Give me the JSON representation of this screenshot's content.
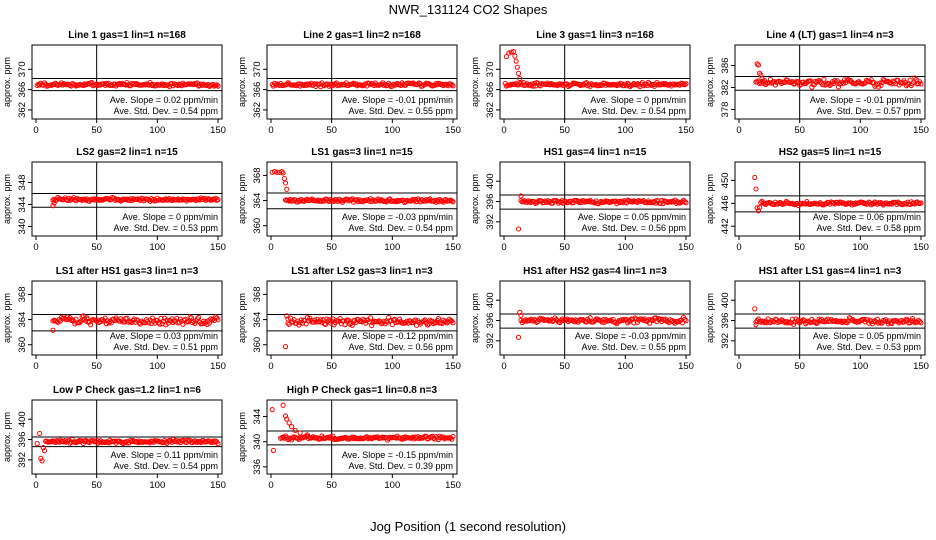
{
  "figure": {
    "title": "NWR_131124  CO2 Shapes",
    "xlabel": "Jog Position (1 second resolution)",
    "ylabel": "approx. ppm",
    "point_color": "#ff0000",
    "line_color": "#000000"
  },
  "chart_data": [
    {
      "type": "scatter",
      "title": "Line 1 gas=1 lin=1 n=168",
      "xlim": [
        0,
        150
      ],
      "xticks": [
        0,
        50,
        100,
        150
      ],
      "ylim": [
        361,
        374
      ],
      "yticks": [
        362,
        366,
        370
      ],
      "hlines": [
        368.2,
        365.8
      ],
      "vline": 50,
      "slope": "Ave. Slope = 0.02  ppm/min",
      "stddev": "Ave. Std. Dev. = 0.54  ppm",
      "profile": {
        "baseline": 367,
        "x_start": 1,
        "x_end": 150,
        "initial": [],
        "noise": 0.25
      }
    },
    {
      "type": "scatter",
      "title": "Line 2 gas=1 lin=2 n=168",
      "xlim": [
        0,
        150
      ],
      "xticks": [
        0,
        50,
        100,
        150
      ],
      "ylim": [
        361,
        374
      ],
      "yticks": [
        362,
        366,
        370
      ],
      "hlines": [
        368.2,
        365.8
      ],
      "vline": 50,
      "slope": "Ave. Slope = -0.01  ppm/min",
      "stddev": "Ave. Std. Dev. = 0.55  ppm",
      "profile": {
        "baseline": 367,
        "x_start": 1,
        "x_end": 150,
        "initial": [],
        "noise": 0.25
      }
    },
    {
      "type": "scatter",
      "title": "Line 3 gas=1 lin=3 n=168",
      "xlim": [
        0,
        150
      ],
      "xticks": [
        0,
        50,
        100,
        150
      ],
      "ylim": [
        361,
        374
      ],
      "yticks": [
        362,
        366,
        370
      ],
      "hlines": [
        368.2,
        365.8
      ],
      "vline": 50,
      "slope": "Ave. Slope = 0  ppm/min",
      "stddev": "Ave. Std. Dev. = 0.54  ppm",
      "profile": {
        "baseline": 367,
        "x_start": 1,
        "x_end": 150,
        "initial": [
          [
            2,
            372.5
          ],
          [
            4,
            373.2
          ],
          [
            6,
            373.4
          ],
          [
            8,
            373.5
          ],
          [
            9,
            372.6
          ],
          [
            10,
            371.6
          ],
          [
            11,
            370.4
          ],
          [
            12,
            369.2
          ],
          [
            13,
            368.2
          ]
        ],
        "noise": 0.25
      }
    },
    {
      "type": "scatter",
      "title": "Line 4 (LT) gas=1 lin=4 n=3",
      "xlim": [
        0,
        150
      ],
      "xticks": [
        0,
        50,
        100,
        150
      ],
      "ylim": [
        377,
        389
      ],
      "yticks": [
        378,
        382,
        386
      ],
      "hlines": [
        384,
        381.5
      ],
      "vline": 50,
      "slope": "Ave. Slope = -0.01  ppm/min",
      "stddev": "Ave. Std. Dev. = 0.57  ppm",
      "profile": {
        "baseline": 382.9,
        "x_start": 14,
        "x_end": 150,
        "initial": [
          [
            15,
            386.3
          ],
          [
            16,
            386.1
          ],
          [
            17,
            384.6
          ],
          [
            18,
            384.3
          ],
          [
            19,
            383.6
          ],
          [
            20,
            383.1
          ]
        ],
        "noise": 0.45
      }
    },
    {
      "type": "scatter",
      "title": "LS2 gas=2 lin=1 n=15",
      "xlim": [
        0,
        150
      ],
      "xticks": [
        0,
        50,
        100,
        150
      ],
      "ylim": [
        339,
        351
      ],
      "yticks": [
        340,
        344,
        348
      ],
      "hlines": [
        346,
        343.5
      ],
      "vline": 50,
      "slope": "Ave. Slope = 0  ppm/min",
      "stddev": "Ave. Std. Dev. = 0.53  ppm",
      "profile": {
        "baseline": 344.9,
        "x_start": 14,
        "x_end": 150,
        "initial": [
          [
            14,
            343.8
          ],
          [
            15,
            344.3
          ]
        ],
        "noise": 0.2
      }
    },
    {
      "type": "scatter",
      "title": "LS1 gas=3 lin=1 n=15",
      "xlim": [
        0,
        150
      ],
      "xticks": [
        0,
        50,
        100,
        150
      ],
      "ylim": [
        359,
        369.5
      ],
      "yticks": [
        360,
        364,
        368
      ],
      "hlines": [
        365.2,
        362.7
      ],
      "vline": 50,
      "slope": "Ave. Slope = -0.03  ppm/min",
      "stddev": "Ave. Std. Dev. = 0.54  ppm",
      "profile": {
        "baseline": 364,
        "x_start": 12,
        "x_end": 150,
        "initial": [
          [
            1,
            368.5
          ],
          [
            3,
            368.6
          ],
          [
            5,
            368.5
          ],
          [
            7,
            368.5
          ],
          [
            9,
            368.6
          ],
          [
            10,
            368.4
          ],
          [
            11,
            367.5
          ],
          [
            12,
            366.8
          ],
          [
            13,
            365.8
          ]
        ],
        "noise": 0.2
      }
    },
    {
      "type": "scatter",
      "title": "HS1 gas=4 lin=1 n=15",
      "xlim": [
        0,
        150
      ],
      "xticks": [
        0,
        50,
        100,
        150
      ],
      "ylim": [
        390,
        403
      ],
      "yticks": [
        392,
        396,
        400
      ],
      "hlines": [
        397.3,
        394.5
      ],
      "vline": 50,
      "slope": "Ave. Slope = 0.05  ppm/min",
      "stddev": "Ave. Std. Dev. = 0.56  ppm",
      "profile": {
        "baseline": 395.9,
        "x_start": 14,
        "x_end": 150,
        "initial": [
          [
            12,
            390.6
          ],
          [
            14,
            397.1
          ]
        ],
        "noise": 0.25
      }
    },
    {
      "type": "scatter",
      "title": "HS2 gas=5 lin=1 n=15",
      "xlim": [
        0,
        150
      ],
      "xticks": [
        0,
        50,
        100,
        150
      ],
      "ylim": [
        441,
        452.5
      ],
      "yticks": [
        442,
        446,
        450
      ],
      "hlines": [
        447.3,
        444.5
      ],
      "vline": 50,
      "slope": "Ave. Slope = 0.06  ppm/min",
      "stddev": "Ave. Std. Dev. = 0.58  ppm",
      "profile": {
        "baseline": 446,
        "x_start": 18,
        "x_end": 150,
        "initial": [
          [
            13,
            450.5
          ],
          [
            14,
            448.5
          ],
          [
            15,
            445.2
          ],
          [
            16,
            444.7
          ],
          [
            17,
            445.3
          ]
        ],
        "noise": 0.2
      }
    },
    {
      "type": "scatter",
      "title": "LS1 after HS1 gas=3 lin=1 n=3",
      "xlim": [
        0,
        150
      ],
      "xticks": [
        0,
        50,
        100,
        150
      ],
      "ylim": [
        359,
        369.5
      ],
      "yticks": [
        360,
        364,
        368
      ],
      "hlines": [
        364.8,
        362.2
      ],
      "vline": 50,
      "slope": "Ave. Slope = 0.03  ppm/min",
      "stddev": "Ave. Std. Dev. = 0.51  ppm",
      "profile": {
        "baseline": 363.8,
        "x_start": 14,
        "x_end": 150,
        "initial": [
          [
            14,
            362.3
          ],
          [
            39,
            364.6
          ],
          [
            42,
            364.3
          ]
        ],
        "noise": 0.4
      }
    },
    {
      "type": "scatter",
      "title": "LS1 after LS2 gas=3 lin=1 n=3",
      "xlim": [
        0,
        150
      ],
      "xticks": [
        0,
        50,
        100,
        150
      ],
      "ylim": [
        359,
        369.5
      ],
      "yticks": [
        360,
        364,
        368
      ],
      "hlines": [
        364.8,
        362.2
      ],
      "vline": 50,
      "slope": "Ave. Slope = -0.12  ppm/min",
      "stddev": "Ave. Std. Dev. = 0.56  ppm",
      "profile": {
        "baseline": 363.7,
        "x_start": 14,
        "x_end": 150,
        "initial": [
          [
            12,
            359.7
          ],
          [
            13,
            364.6
          ],
          [
            14,
            364.1
          ]
        ],
        "noise": 0.4
      }
    },
    {
      "type": "scatter",
      "title": "HS1 after HS2 gas=4 lin=1 n=3",
      "xlim": [
        0,
        150
      ],
      "xticks": [
        0,
        50,
        100,
        150
      ],
      "ylim": [
        390,
        403
      ],
      "yticks": [
        392,
        396,
        400
      ],
      "hlines": [
        397.3,
        394.5
      ],
      "vline": 50,
      "slope": "Ave. Slope = -0.03  ppm/min",
      "stddev": "Ave. Std. Dev. = 0.55  ppm",
      "profile": {
        "baseline": 396,
        "x_start": 14,
        "x_end": 150,
        "initial": [
          [
            12,
            392.7
          ],
          [
            13,
            397.6
          ],
          [
            14,
            397
          ]
        ],
        "noise": 0.35
      }
    },
    {
      "type": "scatter",
      "title": "HS1 after LS1 gas=4 lin=1 n=3",
      "xlim": [
        0,
        150
      ],
      "xticks": [
        0,
        50,
        100,
        150
      ],
      "ylim": [
        390,
        403
      ],
      "yticks": [
        392,
        396,
        400
      ],
      "hlines": [
        397.3,
        394.5
      ],
      "vline": 50,
      "slope": "Ave. Slope = 0.05  ppm/min",
      "stddev": "Ave. Std. Dev. = 0.53  ppm",
      "profile": {
        "baseline": 395.9,
        "x_start": 14,
        "x_end": 150,
        "initial": [
          [
            13,
            398.3
          ],
          [
            14,
            395.2
          ]
        ],
        "noise": 0.35
      }
    },
    {
      "type": "scatter",
      "title": "Low P Check gas=1.2 lin=1 n=6",
      "xlim": [
        0,
        150
      ],
      "xticks": [
        0,
        50,
        100,
        150
      ],
      "ylim": [
        390,
        403
      ],
      "yticks": [
        392,
        396,
        400
      ],
      "hlines": [
        396.5,
        394.6
      ],
      "vline": 50,
      "slope": "Ave. Slope = 0.11  ppm/min",
      "stddev": "Ave. Std. Dev. = 0.54  ppm",
      "profile": {
        "baseline": 395.6,
        "x_start": 8,
        "x_end": 150,
        "initial": [
          [
            1,
            395.2
          ],
          [
            3,
            397.2
          ],
          [
            4,
            392.3
          ],
          [
            5,
            391.8
          ],
          [
            6,
            394.4
          ],
          [
            7,
            393.8
          ]
        ],
        "noise": 0.25
      }
    },
    {
      "type": "scatter",
      "title": "High P Check gas=1 lin=0.8 n=3",
      "xlim": [
        0,
        150
      ],
      "xticks": [
        0,
        50,
        100,
        150
      ],
      "ylim": [
        335.5,
        346
      ],
      "yticks": [
        336,
        340,
        344
      ],
      "hlines": [
        341.7,
        339.5
      ],
      "vline": 50,
      "slope": "Ave. Slope = -0.15  ppm/min",
      "stddev": "Ave. Std. Dev. = 0.39  ppm",
      "profile": {
        "baseline": 340.6,
        "x_start": 8,
        "x_end": 150,
        "initial": [
          [
            1,
            345.1
          ],
          [
            2,
            338.6
          ],
          [
            10,
            345.8
          ],
          [
            12,
            344.1
          ],
          [
            13,
            343.6
          ],
          [
            15,
            343
          ],
          [
            17,
            342.4
          ],
          [
            20,
            341.8
          ],
          [
            24,
            341.4
          ],
          [
            30,
            341.1
          ]
        ],
        "noise": 0.18
      }
    }
  ]
}
